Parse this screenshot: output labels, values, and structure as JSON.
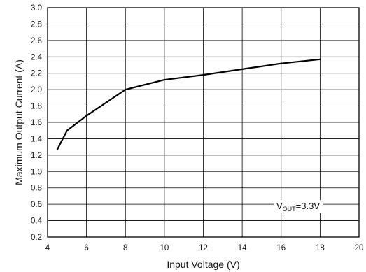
{
  "chart_data": {
    "type": "line",
    "xlabel": "Input Voltage (V)",
    "ylabel": "Maximum Output Current (A)",
    "xlim": [
      4,
      20
    ],
    "ylim": [
      0.2,
      3.0
    ],
    "xticks": [
      "4",
      "6",
      "8",
      "10",
      "12",
      "14",
      "16",
      "18",
      "20"
    ],
    "yticks": [
      "0.2",
      "0.4",
      "0.6",
      "0.8",
      "1.0",
      "1.2",
      "1.4",
      "1.6",
      "1.8",
      "2.0",
      "2.2",
      "2.4",
      "2.6",
      "2.8",
      "3.0"
    ],
    "grid": true,
    "series": [
      {
        "x": [
          4.5,
          5.0,
          6.0,
          8.0,
          10.0,
          12.0,
          14.0,
          16.0,
          18.0
        ],
        "y": [
          1.27,
          1.5,
          1.68,
          2.0,
          2.12,
          2.18,
          2.25,
          2.32,
          2.37
        ],
        "color": "#000000"
      }
    ],
    "annotation": {
      "prefix": "V",
      "subscript": "OUT",
      "suffix": "=3.3V"
    }
  }
}
